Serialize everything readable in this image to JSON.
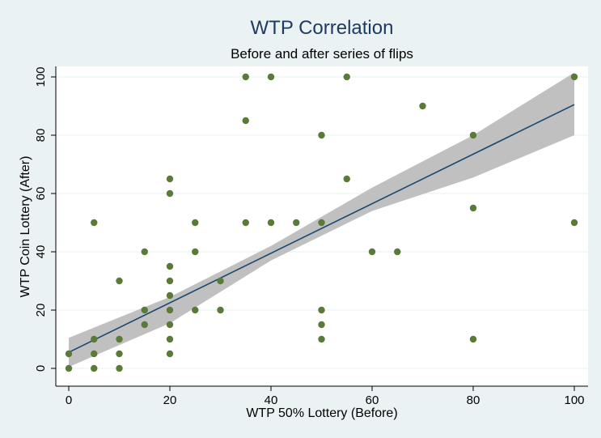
{
  "chart_data": {
    "type": "scatter",
    "title": "WTP Correlation",
    "subtitle": "Before and after series of flips",
    "xlabel": "WTP 50% Lottery (Before)",
    "ylabel": "WTP Coin Lottery (After)",
    "xlim": [
      0,
      100
    ],
    "ylim": [
      0,
      100
    ],
    "xticks": [
      0,
      20,
      40,
      60,
      80,
      100
    ],
    "yticks": [
      0,
      20,
      40,
      60,
      80,
      100
    ],
    "grid": "horizontal",
    "legend": "none",
    "points": [
      {
        "x": 0,
        "y": 0
      },
      {
        "x": 0,
        "y": 5
      },
      {
        "x": 5,
        "y": 0
      },
      {
        "x": 5,
        "y": 5
      },
      {
        "x": 5,
        "y": 10
      },
      {
        "x": 5,
        "y": 50
      },
      {
        "x": 10,
        "y": 0
      },
      {
        "x": 10,
        "y": 5
      },
      {
        "x": 10,
        "y": 10
      },
      {
        "x": 10,
        "y": 30
      },
      {
        "x": 15,
        "y": 15
      },
      {
        "x": 15,
        "y": 20
      },
      {
        "x": 15,
        "y": 40
      },
      {
        "x": 20,
        "y": 5
      },
      {
        "x": 20,
        "y": 10
      },
      {
        "x": 20,
        "y": 15
      },
      {
        "x": 20,
        "y": 20
      },
      {
        "x": 20,
        "y": 25
      },
      {
        "x": 20,
        "y": 30
      },
      {
        "x": 20,
        "y": 35
      },
      {
        "x": 20,
        "y": 60
      },
      {
        "x": 20,
        "y": 65
      },
      {
        "x": 25,
        "y": 20
      },
      {
        "x": 25,
        "y": 40
      },
      {
        "x": 25,
        "y": 50
      },
      {
        "x": 30,
        "y": 20
      },
      {
        "x": 30,
        "y": 30
      },
      {
        "x": 35,
        "y": 50
      },
      {
        "x": 35,
        "y": 85
      },
      {
        "x": 35,
        "y": 100
      },
      {
        "x": 40,
        "y": 50
      },
      {
        "x": 40,
        "y": 100
      },
      {
        "x": 45,
        "y": 50
      },
      {
        "x": 50,
        "y": 10
      },
      {
        "x": 50,
        "y": 15
      },
      {
        "x": 50,
        "y": 20
      },
      {
        "x": 50,
        "y": 50
      },
      {
        "x": 50,
        "y": 80
      },
      {
        "x": 55,
        "y": 65
      },
      {
        "x": 55,
        "y": 100
      },
      {
        "x": 60,
        "y": 40
      },
      {
        "x": 65,
        "y": 40
      },
      {
        "x": 70,
        "y": 90
      },
      {
        "x": 80,
        "y": 10
      },
      {
        "x": 80,
        "y": 55
      },
      {
        "x": 80,
        "y": 80
      },
      {
        "x": 100,
        "y": 50
      },
      {
        "x": 100,
        "y": 100
      }
    ],
    "fit_line": {
      "x": [
        0,
        100
      ],
      "y": [
        5.5,
        90.5
      ]
    },
    "confidence_band": {
      "x": [
        0,
        20,
        40,
        60,
        80,
        100
      ],
      "lower": [
        0.5,
        15.5,
        37,
        54,
        65.5,
        80
      ],
      "upper": [
        10.5,
        24.5,
        42,
        62,
        80,
        101.5
      ]
    },
    "colors": {
      "background": "#eaf2f3",
      "plot_bg": "#ffffff",
      "grid": "#eaf2f3",
      "points": "#5a7a3a",
      "fit_line": "#1a476f",
      "band": "#c0c0c0",
      "title": "#1e3a5f",
      "text": "#000000"
    }
  }
}
